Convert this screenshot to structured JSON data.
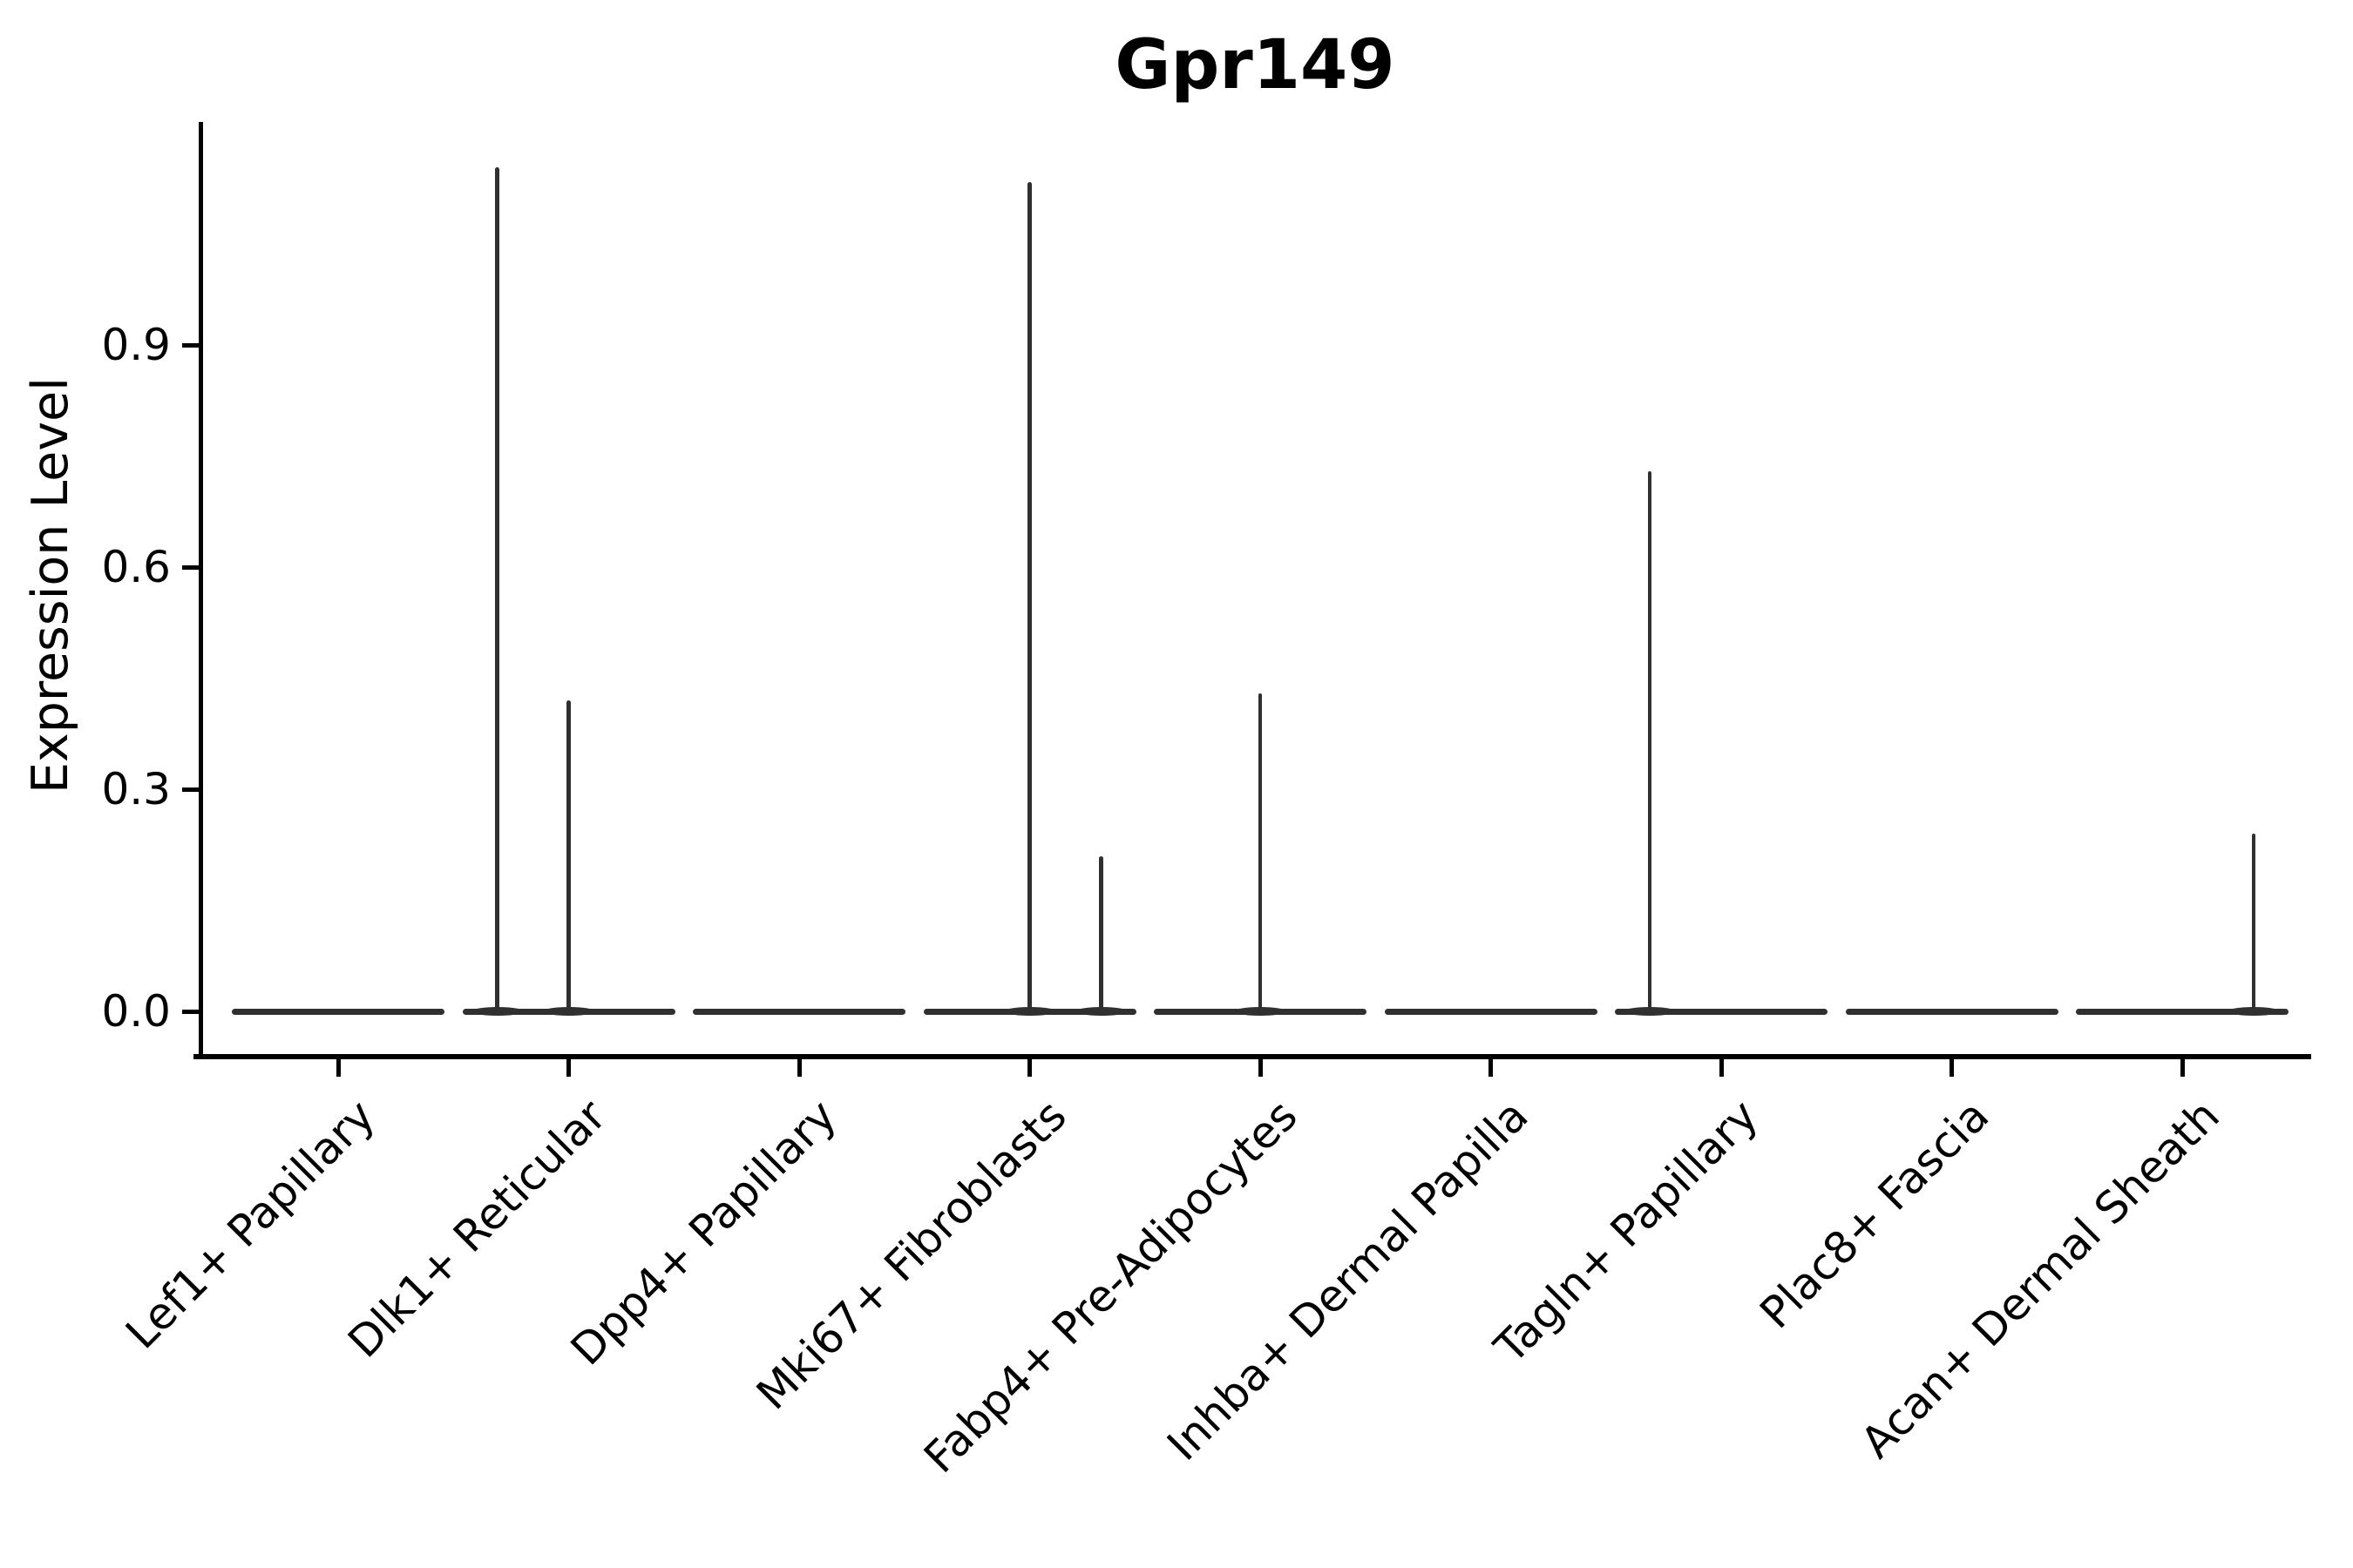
{
  "chart_data": {
    "type": "violin",
    "title": "Gpr149",
    "xlabel": "",
    "ylabel": "Expression Level",
    "yticks": [
      0.0,
      0.3,
      0.6,
      0.9
    ],
    "ylim": [
      -0.06,
      1.2
    ],
    "grid": false,
    "legend": null,
    "categories": [
      "Lef1+ Papillary",
      "Dlk1+ Reticular",
      "Dpp4+ Papillary",
      "Mki67+ Fibroblasts",
      "Fabp4+ Pre-Adipocytes",
      "Inhba+ Dermal Papilla",
      "Tagln+ Papillary",
      "Plac8+ Fascia",
      "Acan+ Dermal Sheath"
    ],
    "series": [
      {
        "category": "Lef1+ Papillary",
        "baseline": 0.0,
        "spikes": []
      },
      {
        "category": "Dlk1+ Reticular",
        "baseline": 0.0,
        "spikes": [
          {
            "pos": -1,
            "value": 1.14
          },
          {
            "pos": 0,
            "value": 0.42
          }
        ]
      },
      {
        "category": "Dpp4+ Papillary",
        "baseline": 0.0,
        "spikes": []
      },
      {
        "category": "Mki67+ Fibroblasts",
        "baseline": 0.0,
        "spikes": [
          {
            "pos": 0,
            "value": 1.12
          },
          {
            "pos": 1,
            "value": 0.21
          }
        ]
      },
      {
        "category": "Fabp4+ Pre-Adipocytes",
        "baseline": 0.0,
        "spikes": [
          {
            "pos": 0,
            "value": 0.43
          }
        ]
      },
      {
        "category": "Inhba+ Dermal Papilla",
        "baseline": 0.0,
        "spikes": []
      },
      {
        "category": "Tagln+ Papillary",
        "baseline": 0.0,
        "spikes": [
          {
            "pos": -1,
            "value": 0.73
          }
        ]
      },
      {
        "category": "Plac8+ Fascia",
        "baseline": 0.0,
        "spikes": []
      },
      {
        "category": "Acan+ Dermal Sheath",
        "baseline": 0.0,
        "spikes": [
          {
            "pos": 1,
            "value": 0.24
          }
        ]
      }
    ],
    "colors": {
      "violin": "#303030",
      "axis": "#000000",
      "text": "#000000",
      "background": "#ffffff"
    }
  }
}
